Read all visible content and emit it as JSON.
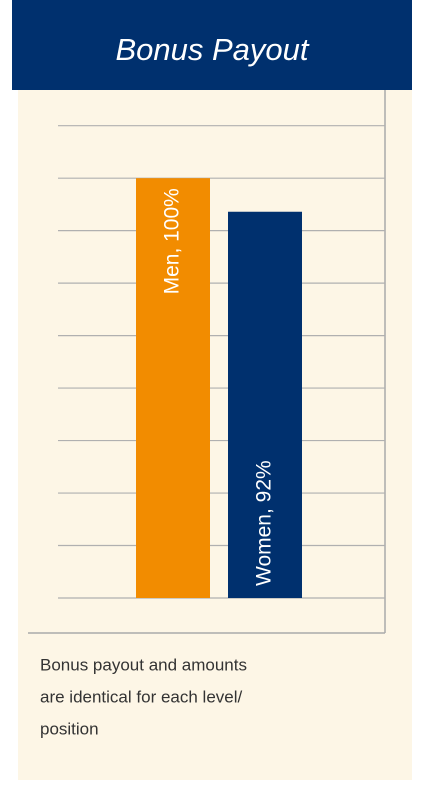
{
  "chart_data": {
    "type": "bar",
    "title": "Bonus Payout",
    "values": [
      100,
      92
    ],
    "value_labels": [
      "Men, 100%",
      "Women, 92%"
    ],
    "colors": [
      "#f28c00",
      "#00306e"
    ],
    "ylim": [
      0,
      121
    ],
    "yticks": [
      0,
      12.5,
      25,
      37.5,
      50,
      62.5,
      75,
      87.5,
      100,
      112.5
    ],
    "grid": true,
    "caption": [
      "Bonus payout and amounts",
      "are identical for each level/",
      "position"
    ]
  }
}
